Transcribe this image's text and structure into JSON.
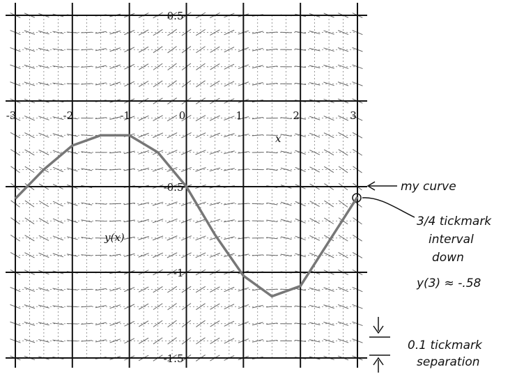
{
  "chart_data": {
    "type": "line",
    "x_label": "x",
    "y_label": "y(x)",
    "x": [
      -3,
      -2.5,
      -2,
      -1.5,
      -1,
      -0.5,
      0,
      0.5,
      1,
      1.5,
      2,
      2.5,
      3
    ],
    "series": [
      {
        "name": "my curve",
        "color": "#777777",
        "values": [
          -0.57,
          -0.4,
          -0.26,
          -0.2,
          -0.2,
          -0.3,
          -0.5,
          -0.78,
          -1.02,
          -1.14,
          -1.08,
          -0.82,
          -0.56
        ]
      }
    ],
    "xlim": [
      -3,
      3
    ],
    "xticks": [
      -3,
      -2,
      -1,
      0,
      1,
      2,
      3
    ],
    "ylim": [
      -1.5,
      0.5
    ],
    "yticks": [
      0.5,
      -0.5,
      -1,
      -1.5
    ],
    "grid": true,
    "annotations": {
      "curve_note": "my curve",
      "offset_note": [
        "3/4 tickmark",
        "interval",
        "down"
      ],
      "estimate": "y(3) ≈ -.58",
      "separation_note": [
        "0.1 tickmark",
        "separation"
      ]
    }
  }
}
